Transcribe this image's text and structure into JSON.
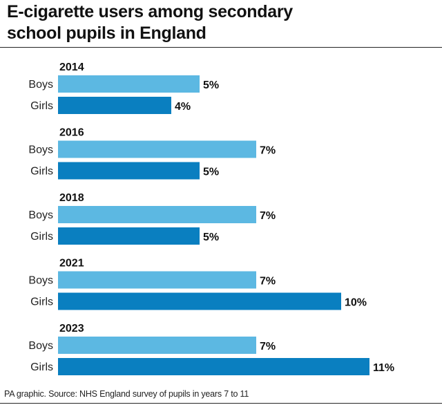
{
  "header": {
    "title_line1": "E-cigarette users among secondary",
    "title_line2": "school pupils in England"
  },
  "footer": {
    "source": "PA graphic. Source: NHS England survey of pupils in years 7 to 11"
  },
  "colors": {
    "boys": "#5cb8e2",
    "girls": "#0a7fc0"
  },
  "chart_data": {
    "type": "bar",
    "orientation": "horizontal",
    "title": "E-cigarette users among secondary school pupils in England",
    "unit": "%",
    "xlim": [
      0,
      12
    ],
    "groups": [
      {
        "year": "2014",
        "bars": [
          {
            "label": "Boys",
            "value": 5,
            "text": "5%"
          },
          {
            "label": "Girls",
            "value": 4,
            "text": "4%"
          }
        ]
      },
      {
        "year": "2016",
        "bars": [
          {
            "label": "Boys",
            "value": 7,
            "text": "7%"
          },
          {
            "label": "Girls",
            "value": 5,
            "text": "5%"
          }
        ]
      },
      {
        "year": "2018",
        "bars": [
          {
            "label": "Boys",
            "value": 7,
            "text": "7%"
          },
          {
            "label": "Girls",
            "value": 5,
            "text": "5%"
          }
        ]
      },
      {
        "year": "2021",
        "bars": [
          {
            "label": "Boys",
            "value": 7,
            "text": "7%"
          },
          {
            "label": "Girls",
            "value": 10,
            "text": "10%"
          }
        ]
      },
      {
        "year": "2023",
        "bars": [
          {
            "label": "Boys",
            "value": 7,
            "text": "7%"
          },
          {
            "label": "Girls",
            "value": 11,
            "text": "11%"
          }
        ]
      }
    ]
  }
}
